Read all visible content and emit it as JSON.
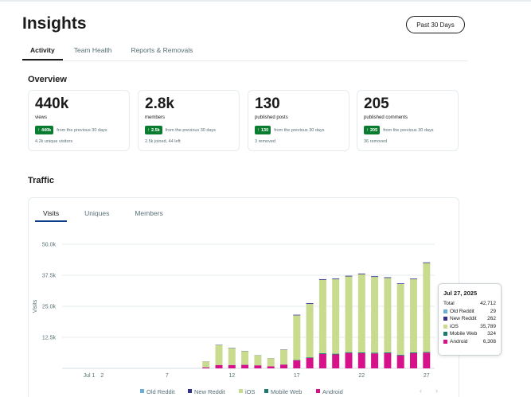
{
  "page": {
    "title": "Insights",
    "date_range": "Past 30 Days"
  },
  "tabs": [
    {
      "label": "Activity",
      "active": true
    },
    {
      "label": "Team Health",
      "active": false
    },
    {
      "label": "Reports & Removals",
      "active": false
    }
  ],
  "overview": {
    "title": "Overview",
    "cards": [
      {
        "value": "440k",
        "label": "views",
        "delta": "440k",
        "compare": "from the previous 30 days",
        "sub": "4.2k unique visitors"
      },
      {
        "value": "2.8k",
        "label": "members",
        "delta": "2.5k",
        "compare": "from the previous 30 days",
        "sub": "2.5k joined, 44 left"
      },
      {
        "value": "130",
        "label": "published posts",
        "delta": "130",
        "compare": "from the previous 30 days",
        "sub": "3 removed"
      },
      {
        "value": "205",
        "label": "published comments",
        "delta": "205",
        "compare": "from the previous 30 days",
        "sub": "36 removed"
      }
    ]
  },
  "traffic": {
    "title": "Traffic",
    "tabs": [
      {
        "label": "Visits",
        "active": true
      },
      {
        "label": "Uniques",
        "active": false
      },
      {
        "label": "Members",
        "active": false
      }
    ]
  },
  "colors": {
    "positive_badge": "#0a7c2f",
    "old_reddit": "#6aaed6",
    "new_reddit": "#33308f",
    "ios": "#c9db8e",
    "mobile_web": "#1b7a6e",
    "android": "#d6118a"
  },
  "chart_data": {
    "type": "bar",
    "stacked": true,
    "ylabel": "Visits",
    "ylim": [
      0,
      50000
    ],
    "y_ticks": [
      "12.5k",
      "25.0k",
      "37.5k",
      "50.0k"
    ],
    "y_tick_values": [
      12500,
      25000,
      37500,
      50000
    ],
    "grid": true,
    "legend_position": "bottom",
    "x_tick_labels": [
      {
        "day": 0,
        "label": "Jul 1"
      },
      {
        "day": 1,
        "label": "2"
      },
      {
        "day": 6,
        "label": "7"
      },
      {
        "day": 11,
        "label": "12"
      },
      {
        "day": 16,
        "label": "17"
      },
      {
        "day": 21,
        "label": "22"
      },
      {
        "day": 26,
        "label": "27"
      }
    ],
    "days": [
      9,
      10,
      11,
      12,
      13,
      14,
      15,
      16,
      17,
      18,
      19,
      20,
      21,
      22,
      23,
      24,
      25,
      26
    ],
    "series": [
      {
        "name": "Old Reddit",
        "color": "#6aaed6",
        "values": [
          10,
          20,
          20,
          20,
          15,
          10,
          10,
          20,
          25,
          25,
          30,
          30,
          30,
          30,
          30,
          30,
          30,
          29
        ]
      },
      {
        "name": "New Reddit",
        "color": "#33308f",
        "values": [
          50,
          120,
          110,
          90,
          70,
          60,
          100,
          250,
          300,
          300,
          280,
          280,
          280,
          280,
          270,
          260,
          260,
          262
        ]
      },
      {
        "name": "iOS",
        "color": "#c9db8e",
        "values": [
          2300,
          8000,
          6800,
          5500,
          4000,
          3200,
          6000,
          18000,
          21500,
          29500,
          30000,
          30500,
          31500,
          30500,
          30000,
          28500,
          29500,
          35789
        ]
      },
      {
        "name": "Mobile Web",
        "color": "#1b7a6e",
        "values": [
          40,
          60,
          60,
          50,
          40,
          40,
          60,
          150,
          250,
          300,
          300,
          320,
          320,
          320,
          320,
          310,
          320,
          324
        ]
      },
      {
        "name": "Android",
        "color": "#d6118a",
        "values": [
          400,
          1300,
          1300,
          1400,
          1200,
          800,
          1500,
          3200,
          4200,
          5800,
          5600,
          6200,
          6100,
          6000,
          6100,
          5200,
          6100,
          6308
        ]
      }
    ],
    "tooltip": {
      "date": "Jul 27, 2025",
      "total_label": "Total",
      "total": "42,712",
      "rows": [
        {
          "name": "Old Reddit",
          "value": "29",
          "color": "#6aaed6"
        },
        {
          "name": "New Reddit",
          "value": "262",
          "color": "#33308f"
        },
        {
          "name": "iOS",
          "value": "35,789",
          "color": "#c9db8e"
        },
        {
          "name": "Mobile Web",
          "value": "324",
          "color": "#1b7a6e"
        },
        {
          "name": "Android",
          "value": "6,308",
          "color": "#d6118a"
        }
      ]
    }
  },
  "pager": {
    "prev": "‹",
    "next": "›"
  }
}
